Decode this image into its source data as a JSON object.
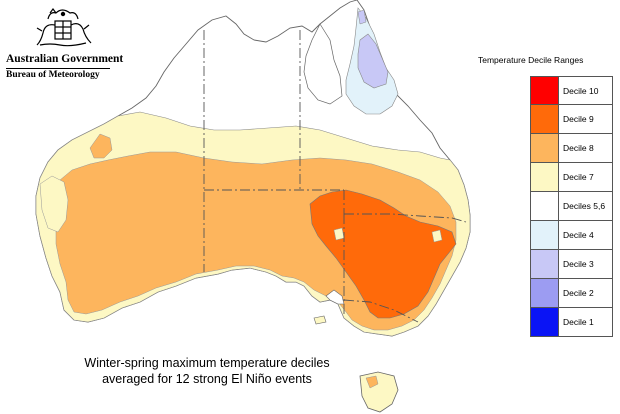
{
  "header": {
    "government": "Australian Government",
    "bureau": "Bureau of Meteorology"
  },
  "legend": {
    "title": "Temperature Decile Ranges",
    "items": [
      {
        "label": "Decile 10",
        "color": "#ff0000"
      },
      {
        "label": "Decile 9",
        "color": "#ff6a0a"
      },
      {
        "label": "Decile 8",
        "color": "#fdb55d"
      },
      {
        "label": "Decile 7",
        "color": "#fdf8c4"
      },
      {
        "label": "Deciles 5,6",
        "color": "#ffffff"
      },
      {
        "label": "Decile 4",
        "color": "#e2f2fa"
      },
      {
        "label": "Decile 3",
        "color": "#c8c8f6"
      },
      {
        "label": "Decile 2",
        "color": "#9c9cf2"
      },
      {
        "label": "Decile 1",
        "color": "#0a14f5"
      }
    ]
  },
  "caption": {
    "line1": "Winter-spring maximum temperature deciles",
    "line2": "averaged for 12 strong El Niño events"
  },
  "map": {
    "colors": {
      "decile9": "#ff6a0a",
      "decile8": "#fdb55d",
      "decile7": "#fdf8c4",
      "decile4": "#e2f2fa",
      "decile3": "#c8c8f6",
      "outline": "#666666"
    }
  }
}
